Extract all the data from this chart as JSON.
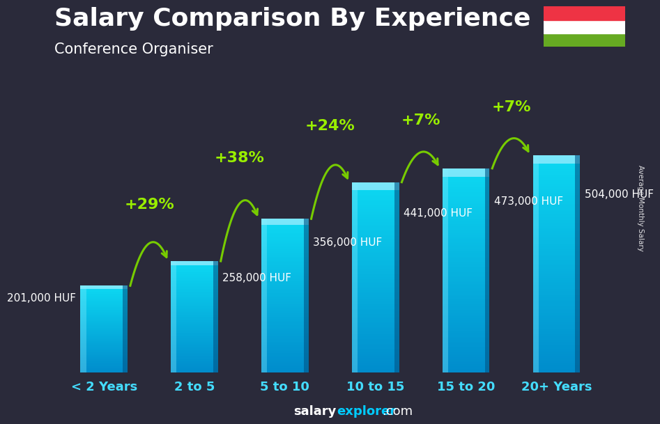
{
  "title": "Salary Comparison By Experience",
  "subtitle": "Conference Organiser",
  "watermark": "Average Monthly Salary",
  "categories": [
    "< 2 Years",
    "2 to 5",
    "5 to 10",
    "10 to 15",
    "15 to 20",
    "20+ Years"
  ],
  "values": [
    201000,
    258000,
    356000,
    441000,
    473000,
    504000
  ],
  "value_labels": [
    "201,000 HUF",
    "258,000 HUF",
    "356,000 HUF",
    "441,000 HUF",
    "473,000 HUF",
    "504,000 HUF"
  ],
  "pct_labels": [
    "+29%",
    "+38%",
    "+24%",
    "+7%",
    "+7%"
  ],
  "bar_color_light": "#00cfee",
  "bar_color_mid": "#00aadd",
  "bar_color_dark": "#0077bb",
  "bar_highlight": "#80eeff",
  "bg_color": "#2a2a3a",
  "title_color": "#ffffff",
  "label_color": "#ffffff",
  "pct_color": "#99ee00",
  "arrow_color": "#77cc00",
  "footer_salary_color": "#ffffff",
  "footer_explorer_color": "#00ccff",
  "flag_red": "#ee3344",
  "flag_white": "#ffffff",
  "flag_green": "#66aa22",
  "ylim": [
    0,
    600000
  ],
  "bar_width": 0.52,
  "title_fontsize": 26,
  "subtitle_fontsize": 15,
  "label_fontsize": 11,
  "pct_fontsize": 16,
  "cat_fontsize": 13,
  "footer_fontsize": 13
}
